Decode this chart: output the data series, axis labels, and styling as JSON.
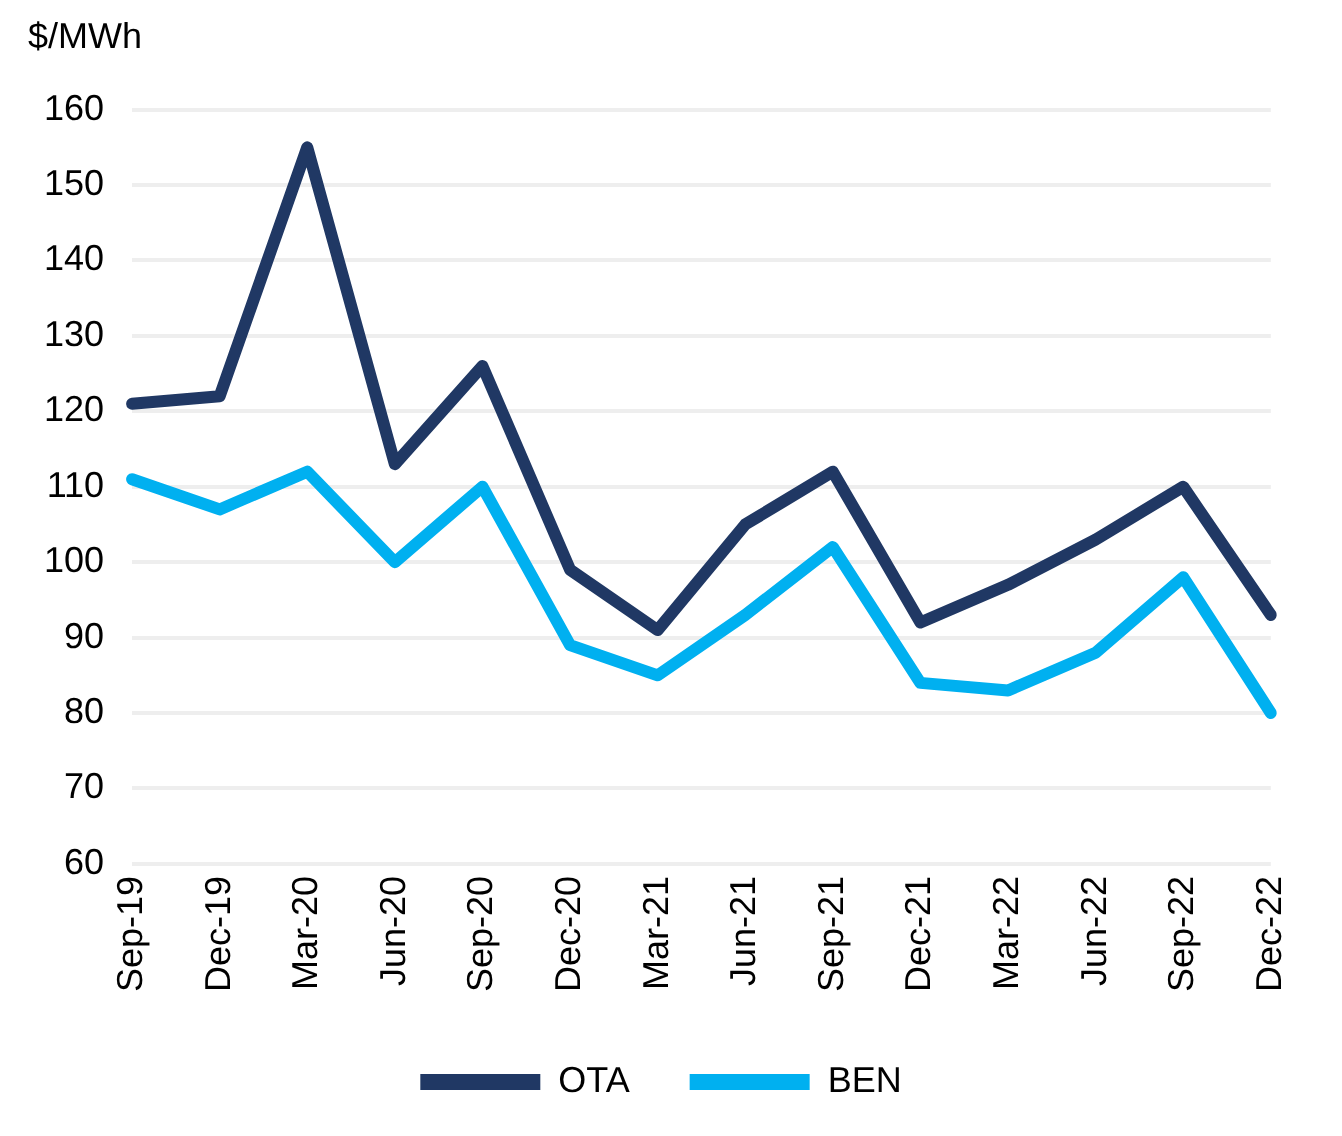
{
  "chart_data": {
    "type": "line",
    "ylabel": "$/MWh",
    "categories": [
      "Sep-19",
      "Dec-19",
      "Mar-20",
      "Jun-20",
      "Sep-20",
      "Dec-20",
      "Mar-21",
      "Jun-21",
      "Sep-21",
      "Dec-21",
      "Mar-22",
      "Jun-22",
      "Sep-22",
      "Dec-22"
    ],
    "series": [
      {
        "name": "OTA",
        "color": "#203864",
        "values": [
          121,
          122,
          155,
          113,
          126,
          99,
          91,
          105,
          112,
          92,
          97,
          103,
          110,
          93
        ]
      },
      {
        "name": "BEN",
        "color": "#00b0f0",
        "values": [
          111,
          107,
          112,
          100,
          110,
          89,
          85,
          93,
          102,
          84,
          83,
          88,
          98,
          80
        ]
      }
    ],
    "ylim": [
      60,
      160
    ],
    "yticks": [
      60,
      70,
      80,
      90,
      100,
      110,
      120,
      130,
      140,
      150,
      160
    ],
    "grid": "y",
    "legend": "bottom",
    "marker": "none",
    "line_style": "solid"
  }
}
